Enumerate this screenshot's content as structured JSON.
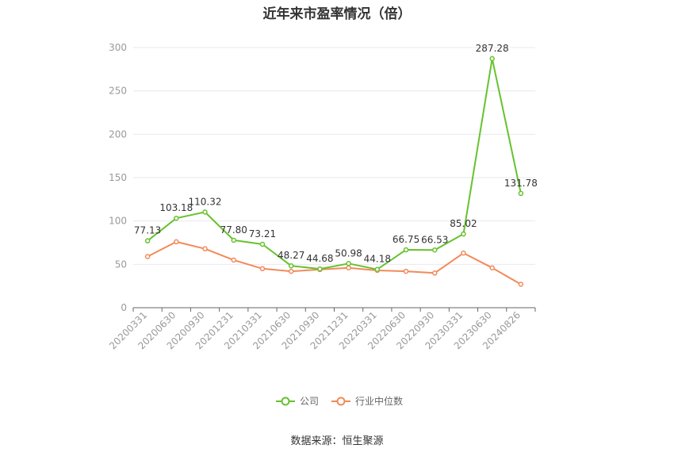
{
  "title": "近年来市盈率情况（倍）",
  "source": "数据来源：恒生聚源",
  "colors": {
    "company": "#66c22e",
    "industry": "#f28a5a",
    "grid": "#e8e8f0",
    "axis": "#666666"
  },
  "chart_data": {
    "type": "line",
    "title": "近年来市盈率情况（倍）",
    "categories": [
      "20200331",
      "20200630",
      "20200930",
      "20201231",
      "20210331",
      "20210630",
      "20210930",
      "20211231",
      "20220331",
      "20220630",
      "20220930",
      "20230331",
      "20230630",
      "20240826"
    ],
    "ylim": [
      0,
      300
    ],
    "yticks": [
      0,
      50,
      100,
      150,
      200,
      250,
      300
    ],
    "grid": true,
    "legend": "bottom-center",
    "series": [
      {
        "name": "公司",
        "labeled": true,
        "values": [
          77.13,
          103.18,
          110.32,
          77.8,
          73.21,
          48.27,
          44.68,
          50.98,
          44.18,
          66.75,
          66.53,
          85.02,
          287.28,
          131.78
        ],
        "labels": [
          "77.13",
          "103.18",
          "110.32",
          "77.80",
          "73.21",
          "48.27",
          "44.68",
          "50.98",
          "44.18",
          "66.75",
          "66.53",
          "85.02",
          "287.28",
          "131.78"
        ]
      },
      {
        "name": "行业中位数",
        "labeled": false,
        "values": [
          59,
          76,
          68,
          55,
          45,
          42,
          44,
          46,
          43,
          42,
          40,
          63,
          46,
          27
        ]
      }
    ]
  }
}
